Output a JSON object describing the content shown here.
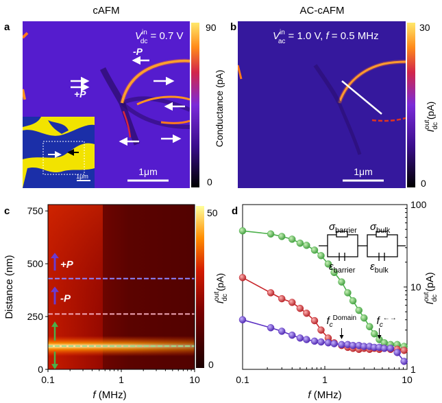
{
  "panel_a": {
    "letter": "a",
    "title": "cAFM",
    "annotation": {
      "symbol": "V",
      "sup": "in",
      "sub": "dc",
      "value": " = 0.7 V"
    },
    "label_plus": "+P",
    "label_minus": "-P",
    "scalebar": "1μm",
    "inset_scalebar": "1μm",
    "colorbar": {
      "label": "Conductance (pA)",
      "max": "90",
      "min": "0"
    }
  },
  "panel_b": {
    "letter": "b",
    "title": "AC-cAFM",
    "annotation": {
      "symbol": "V",
      "sup": "in",
      "sub": "ac",
      "value": " = 1.0 V, ",
      "f_symbol": "f",
      "f_value": " = 0.5 MHz"
    },
    "scalebar": "1μm",
    "colorbar": {
      "label_symbol": "I",
      "label_sup": "out",
      "label_sub": "dc",
      "label_unit": " (pA)",
      "max": "30",
      "min": "0"
    }
  },
  "chart_data": [
    {
      "panel": "c",
      "type": "heatmap",
      "xlabel_symbol": "f",
      "xlabel_unit": " (MHz)",
      "ylabel": "Distance (nm)",
      "x_scale": "log",
      "xlim": [
        0.1,
        10
      ],
      "ylim": [
        0,
        780
      ],
      "x_ticks": [
        "0.1",
        "1",
        "10"
      ],
      "y_ticks": [
        "0",
        "250",
        "500",
        "750"
      ],
      "y_tick_values": [
        0,
        250,
        500,
        750
      ],
      "dashed_lines": [
        {
          "distance": 430,
          "color": "#8c84ff"
        },
        {
          "distance": 262,
          "color": "#f2a8b8"
        },
        {
          "distance": 110,
          "color": "#9fdc8f"
        }
      ],
      "labels": [
        {
          "text": "+P",
          "distance": 500,
          "arrow_color": "#6a3bd0"
        },
        {
          "text": "-P",
          "distance": 340,
          "arrow_color": "#6a3bd0"
        }
      ],
      "colorbar": {
        "label_symbol": "I",
        "label_sup": "out",
        "label_sub": "dc",
        "label_unit": " (pA)",
        "max": "50",
        "min": "0"
      }
    },
    {
      "panel": "d",
      "type": "scatter",
      "xlabel_symbol": "f",
      "xlabel_unit": " (MHz)",
      "x_scale": "log",
      "y_scale": "log",
      "xlim": [
        0.1,
        10
      ],
      "ylim": [
        1,
        100
      ],
      "x_ticks": [
        "0.1",
        "1",
        "10"
      ],
      "y_ticks": [
        "1",
        "10",
        "100"
      ],
      "ylabel_symbol": "I",
      "ylabel_sup": "out",
      "ylabel_sub": "dc",
      "ylabel_unit": " (pA)",
      "series": [
        {
          "color": "#4bb04a",
          "x": [
            0.1,
            0.22,
            0.3,
            0.4,
            0.5,
            0.6,
            0.75,
            0.9,
            1.1,
            1.3,
            1.6,
            1.9,
            2.2,
            2.6,
            3.0,
            3.5,
            4.0,
            4.6,
            5.3,
            6.3,
            7.6,
            9.2
          ],
          "y": [
            48,
            44,
            41,
            38,
            34,
            32,
            28,
            24,
            19,
            15,
            11.5,
            8.5,
            6.8,
            5.2,
            4.2,
            3.3,
            2.7,
            2.3,
            2.1,
            2.0,
            2.0,
            1.9
          ]
        },
        {
          "color": "#c8262b",
          "x": [
            0.1,
            0.22,
            0.3,
            0.4,
            0.5,
            0.6,
            0.75,
            0.9,
            1.1,
            1.3,
            1.6,
            1.9,
            2.2,
            2.6,
            3.0,
            3.5,
            4.0,
            4.6,
            5.3,
            6.3,
            7.6,
            9.2
          ],
          "y": [
            13,
            8.5,
            7.2,
            6.5,
            5.5,
            4.8,
            3.9,
            3.0,
            2.4,
            2.1,
            1.95,
            1.85,
            1.8,
            1.75,
            1.8,
            1.75,
            1.8,
            1.75,
            1.8,
            1.75,
            1.75,
            1.7
          ]
        },
        {
          "color": "#5a2fc2",
          "x": [
            0.1,
            0.22,
            0.3,
            0.4,
            0.5,
            0.6,
            0.75,
            0.9,
            1.1,
            1.3,
            1.6,
            1.9,
            2.2,
            2.6,
            3.0,
            3.5,
            4.0,
            4.6,
            5.3,
            6.3,
            7.6,
            9.2
          ],
          "y": [
            4.0,
            3.2,
            2.9,
            2.6,
            2.4,
            2.3,
            2.2,
            2.15,
            2.1,
            2.05,
            2.0,
            2.0,
            1.95,
            1.95,
            1.9,
            1.9,
            1.85,
            1.85,
            1.8,
            1.8,
            1.6,
            1.25
          ]
        }
      ],
      "circuit": {
        "sigma_barrier_symbol": "σ",
        "sigma_barrier_sub": "barrier",
        "sigma_bulk_symbol": "σ",
        "sigma_bulk_sub": "bulk",
        "eps_barrier_symbol": "ε",
        "eps_barrier_sub": "barrier",
        "eps_bulk_symbol": "ε",
        "eps_bulk_sub": "bulk"
      },
      "annotations": [
        {
          "symbol": "f",
          "sub": "c",
          "sup": "Domain",
          "x": 1.6
        },
        {
          "symbol": "f",
          "sub": "c",
          "sup": "←→",
          "x": 4.6
        }
      ]
    }
  ]
}
